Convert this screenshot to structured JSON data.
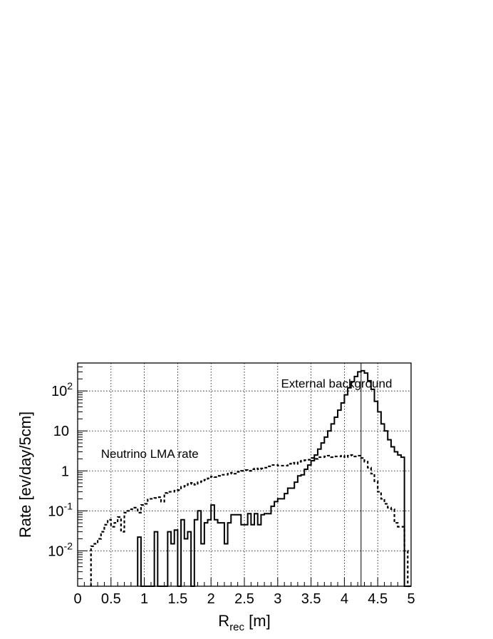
{
  "chart_data": {
    "type": "line",
    "style": "step-histogram",
    "xlabel": "R",
    "xlabel_sub": "rec",
    "xlabel_unit": " [m]",
    "ylabel": "Rate [ev/day/5cm]",
    "xlim": [
      0,
      5
    ],
    "ylim": [
      0.0013,
      500
    ],
    "yscale": "log",
    "grid": true,
    "bin_width": 0.05,
    "vertical_marker_x": 4.25,
    "x_ticks": [
      {
        "v": 0,
        "label": "0"
      },
      {
        "v": 0.5,
        "label": "0.5"
      },
      {
        "v": 1,
        "label": "1"
      },
      {
        "v": 1.5,
        "label": "1.5"
      },
      {
        "v": 2,
        "label": "2"
      },
      {
        "v": 2.5,
        "label": "2.5"
      },
      {
        "v": 3,
        "label": "3"
      },
      {
        "v": 3.5,
        "label": "3.5"
      },
      {
        "v": 4,
        "label": "4"
      },
      {
        "v": 4.5,
        "label": "4.5"
      },
      {
        "v": 5,
        "label": "5"
      }
    ],
    "y_ticks": [
      {
        "v": 0.01,
        "base": "10",
        "exp": "-2"
      },
      {
        "v": 0.1,
        "base": "10",
        "exp": "-1"
      },
      {
        "v": 1,
        "base": "1",
        "exp": ""
      },
      {
        "v": 10,
        "base": "10",
        "exp": ""
      },
      {
        "v": 100,
        "base": "10",
        "exp": "2"
      }
    ],
    "annotations": [
      {
        "text": "External background",
        "x": 3.05,
        "y": 120
      },
      {
        "text": "Neutrino LMA rate",
        "x": 0.35,
        "y": 2.1
      }
    ],
    "series": [
      {
        "style": "solid",
        "x": [
          0.9,
          0.95,
          1.0,
          1.05,
          1.1,
          1.15,
          1.2,
          1.25,
          1.3,
          1.35,
          1.4,
          1.45,
          1.5,
          1.55,
          1.6,
          1.65,
          1.7,
          1.75,
          1.8,
          1.85,
          1.9,
          1.95,
          2.0,
          2.05,
          2.1,
          2.15,
          2.2,
          2.25,
          2.3,
          2.35,
          2.4,
          2.45,
          2.5,
          2.55,
          2.6,
          2.65,
          2.7,
          2.75,
          2.8,
          2.85,
          2.9,
          2.95,
          3.0,
          3.05,
          3.1,
          3.15,
          3.2,
          3.25,
          3.3,
          3.35,
          3.4,
          3.45,
          3.5,
          3.55,
          3.6,
          3.65,
          3.7,
          3.75,
          3.8,
          3.85,
          3.9,
          3.95,
          4.0,
          4.05,
          4.1,
          4.15,
          4.2,
          4.25,
          4.3,
          4.35,
          4.4,
          4.45,
          4.5,
          4.55,
          4.6,
          4.65,
          4.7,
          4.75,
          4.8,
          4.85,
          4.9,
          4.95
        ],
        "y": [
          0.022,
          0,
          0,
          0,
          0,
          0.03,
          0,
          0,
          0,
          0.03,
          0.015,
          0.033,
          0,
          0.06,
          0.02,
          0.03,
          0,
          0.06,
          0.1,
          0.015,
          0.05,
          0.06,
          0.14,
          0.06,
          0.05,
          0.05,
          0.015,
          0.05,
          0.08,
          0.08,
          0.08,
          0.045,
          0.045,
          0.085,
          0.045,
          0.085,
          0.045,
          0.08,
          0.085,
          0.085,
          0.13,
          0.17,
          0.2,
          0.2,
          0.27,
          0.37,
          0.37,
          0.52,
          0.75,
          0.8,
          1.1,
          1.4,
          1.8,
          2.5,
          3.5,
          5,
          7,
          10,
          15,
          22,
          33,
          50,
          80,
          120,
          170,
          230,
          300,
          320,
          280,
          180,
          110,
          55,
          30,
          15,
          10,
          6,
          4,
          3,
          2.5,
          2.2,
          0,
          0
        ]
      },
      {
        "style": "dashed",
        "x": [
          0.2,
          0.25,
          0.3,
          0.35,
          0.4,
          0.45,
          0.5,
          0.55,
          0.6,
          0.65,
          0.7,
          0.75,
          0.8,
          0.85,
          0.9,
          0.95,
          1.0,
          1.05,
          1.1,
          1.15,
          1.2,
          1.25,
          1.3,
          1.35,
          1.4,
          1.45,
          1.5,
          1.55,
          1.6,
          1.65,
          1.7,
          1.75,
          1.8,
          1.85,
          1.9,
          1.95,
          2.0,
          2.05,
          2.1,
          2.15,
          2.2,
          2.25,
          2.3,
          2.35,
          2.4,
          2.45,
          2.5,
          2.55,
          2.6,
          2.65,
          2.7,
          2.75,
          2.8,
          2.85,
          2.9,
          2.95,
          3.0,
          3.05,
          3.1,
          3.15,
          3.2,
          3.25,
          3.3,
          3.35,
          3.4,
          3.45,
          3.5,
          3.55,
          3.6,
          3.65,
          3.7,
          3.75,
          3.8,
          3.85,
          3.9,
          3.95,
          4.0,
          4.05,
          4.1,
          4.15,
          4.2,
          4.25,
          4.3,
          4.35,
          4.4,
          4.45,
          4.5,
          4.55,
          4.6,
          4.65,
          4.7,
          4.75,
          4.8,
          4.85,
          4.9,
          4.95
        ],
        "y": [
          0.013,
          0.015,
          0.02,
          0.03,
          0.045,
          0.06,
          0.04,
          0.05,
          0.07,
          0.03,
          0.09,
          0.1,
          0.11,
          0.12,
          0.09,
          0.14,
          0.15,
          0.2,
          0.2,
          0.21,
          0.22,
          0.17,
          0.28,
          0.3,
          0.3,
          0.32,
          0.33,
          0.4,
          0.42,
          0.47,
          0.5,
          0.45,
          0.52,
          0.55,
          0.6,
          0.65,
          0.72,
          0.7,
          0.75,
          0.8,
          0.8,
          0.85,
          0.9,
          0.85,
          0.95,
          1.0,
          1.05,
          1.0,
          1.1,
          1.15,
          1.1,
          1.15,
          1.2,
          1.3,
          1.4,
          1.4,
          1.35,
          1.35,
          1.35,
          1.5,
          1.6,
          1.5,
          1.7,
          1.8,
          1.85,
          1.9,
          2.1,
          2.0,
          2.2,
          2.2,
          2.3,
          2.4,
          2.2,
          2.3,
          2.3,
          2.4,
          2.2,
          2.4,
          2.5,
          2.3,
          2.4,
          2.1,
          1.7,
          1.2,
          0.85,
          0.55,
          0.3,
          0.2,
          0.15,
          0.12,
          0.11,
          0.05,
          0.04,
          0.04,
          0.01,
          0
        ]
      }
    ]
  }
}
